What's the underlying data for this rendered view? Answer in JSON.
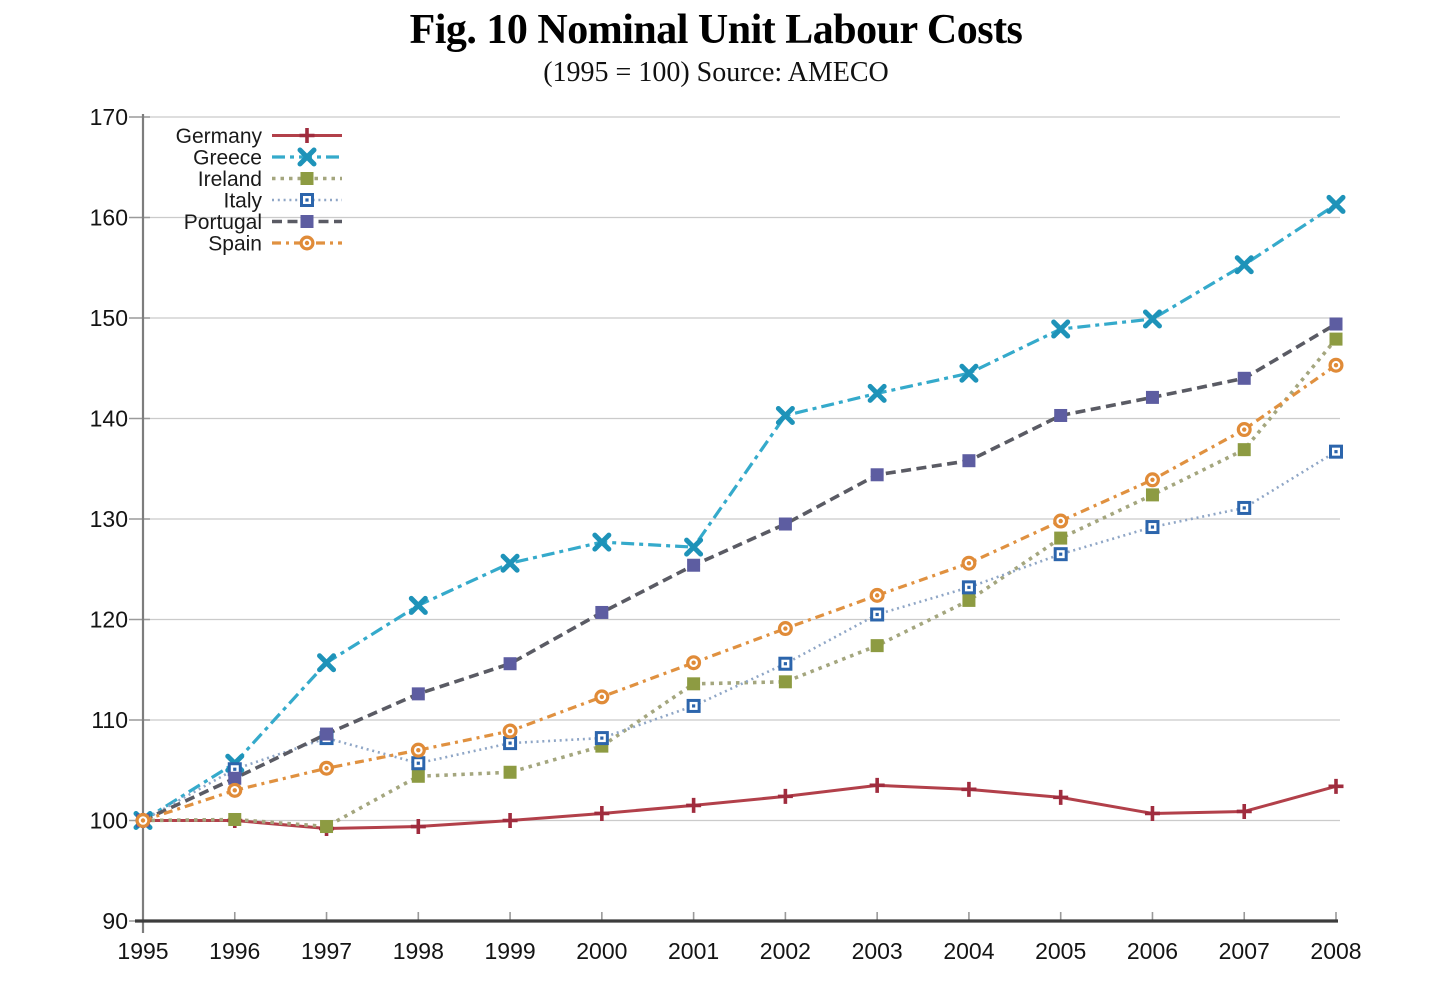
{
  "title": "Fig. 10 Nominal Unit Labour Costs",
  "subtitle": "(1995 = 100) Source: AMECO",
  "chart_data": {
    "type": "line",
    "title": "Fig. 10 Nominal Unit Labour Costs",
    "subtitle": "(1995 = 100) Source: AMECO",
    "x": [
      1995,
      1996,
      1997,
      1998,
      1999,
      2000,
      2001,
      2002,
      2003,
      2004,
      2005,
      2006,
      2007,
      2008
    ],
    "ylim": [
      90,
      170
    ],
    "yticks": [
      90,
      100,
      110,
      120,
      130,
      140,
      150,
      160,
      170
    ],
    "grid": "horizontal",
    "legend_position": "top-left",
    "axis_text_color": "#141414",
    "grid_color": "#cbcbcb",
    "series": [
      {
        "name": "Germany",
        "line_color": "#b2404a",
        "marker_color": "#a02c3e",
        "line_style": "solid",
        "marker": "plus",
        "values": [
          100.0,
          100.0,
          99.2,
          99.4,
          100.0,
          100.7,
          101.5,
          102.4,
          103.5,
          103.1,
          102.3,
          100.7,
          100.9,
          103.4
        ]
      },
      {
        "name": "Greece",
        "line_color": "#35aacb",
        "marker_color": "#1e93b9",
        "line_style": "dash-dot",
        "marker": "x",
        "values": [
          100.0,
          105.7,
          115.7,
          121.4,
          125.6,
          127.7,
          127.2,
          140.3,
          142.5,
          144.5,
          148.9,
          149.9,
          155.3,
          161.3
        ]
      },
      {
        "name": "Ireland",
        "line_color": "#a4a67e",
        "marker_color": "#8d9b42",
        "line_style": "dotted",
        "marker": "square-filled",
        "values": [
          100.0,
          100.1,
          99.4,
          104.4,
          104.8,
          107.4,
          113.6,
          113.8,
          117.4,
          121.9,
          128.1,
          132.4,
          136.9,
          147.9
        ]
      },
      {
        "name": "Italy",
        "line_color": "#8fa6c6",
        "marker_color": "#2c65ac",
        "line_style": "dotted-fine",
        "marker": "square-bullseye",
        "values": [
          100.0,
          105.1,
          108.2,
          105.7,
          107.7,
          108.2,
          111.4,
          115.6,
          120.5,
          123.2,
          126.5,
          129.2,
          131.1,
          136.7
        ]
      },
      {
        "name": "Portugal",
        "line_color": "#5a5b64",
        "marker_color": "#5d5da1",
        "line_style": "dashed",
        "marker": "square-filled",
        "values": [
          100.0,
          104.2,
          108.6,
          112.6,
          115.6,
          120.7,
          125.4,
          129.5,
          134.4,
          135.8,
          140.3,
          142.1,
          144.0,
          149.4
        ]
      },
      {
        "name": "Spain",
        "line_color": "#e09140",
        "marker_color": "#e08b38",
        "line_style": "dash-dot-dot",
        "marker": "circle-bullseye",
        "values": [
          100.0,
          103.0,
          105.2,
          107.0,
          108.9,
          112.3,
          115.7,
          119.1,
          122.4,
          125.6,
          129.8,
          133.9,
          138.9,
          145.3
        ]
      }
    ]
  }
}
